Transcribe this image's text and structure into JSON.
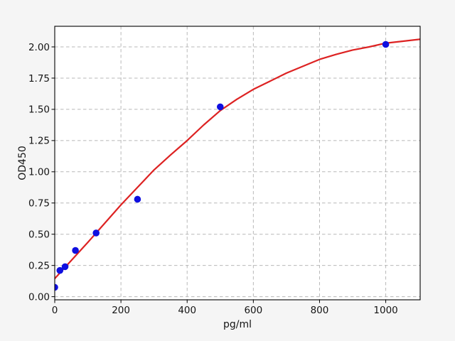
{
  "figure": {
    "background": "#f5f5f5",
    "plot_background": "#ffffff",
    "spine_color": "#000000",
    "grid_color": "#b8b8b8",
    "tick_color": "#000000",
    "text_color": "#151515"
  },
  "chart_data": {
    "type": "scatter",
    "title": "",
    "xlabel": "pg/ml",
    "ylabel": "OD450",
    "xlim": [
      0,
      1104
    ],
    "ylim": [
      -0.025,
      2.165
    ],
    "grid": "dashed",
    "legend_position": "none",
    "xticks": [
      {
        "v": 0,
        "label": "0"
      },
      {
        "v": 200,
        "label": "200"
      },
      {
        "v": 400,
        "label": "400"
      },
      {
        "v": 600,
        "label": "600"
      },
      {
        "v": 800,
        "label": "800"
      },
      {
        "v": 1000,
        "label": "1000"
      }
    ],
    "yticks": [
      {
        "v": 0.0,
        "label": "0.00"
      },
      {
        "v": 0.25,
        "label": "0.25"
      },
      {
        "v": 0.5,
        "label": "0.50"
      },
      {
        "v": 0.75,
        "label": "0.75"
      },
      {
        "v": 1.0,
        "label": "1.00"
      },
      {
        "v": 1.25,
        "label": "1.25"
      },
      {
        "v": 1.5,
        "label": "1.50"
      },
      {
        "v": 1.75,
        "label": "1.75"
      },
      {
        "v": 2.0,
        "label": "2.00"
      }
    ],
    "series": [
      {
        "name": "fit-curve",
        "type": "line",
        "color": "#dd2222",
        "line_width": 2.2,
        "points": [
          [
            0,
            0.145
          ],
          [
            50,
            0.29
          ],
          [
            100,
            0.435
          ],
          [
            150,
            0.585
          ],
          [
            200,
            0.735
          ],
          [
            250,
            0.875
          ],
          [
            300,
            1.015
          ],
          [
            350,
            1.135
          ],
          [
            400,
            1.25
          ],
          [
            450,
            1.375
          ],
          [
            500,
            1.49
          ],
          [
            550,
            1.58
          ],
          [
            600,
            1.66
          ],
          [
            650,
            1.725
          ],
          [
            700,
            1.79
          ],
          [
            750,
            1.845
          ],
          [
            800,
            1.9
          ],
          [
            850,
            1.94
          ],
          [
            900,
            1.975
          ],
          [
            950,
            2.0
          ],
          [
            1000,
            2.03
          ],
          [
            1050,
            2.045
          ],
          [
            1104,
            2.061
          ]
        ]
      },
      {
        "name": "standard-points",
        "type": "scatter",
        "color": "#0f0fe0",
        "marker_radius": 4.8,
        "points": [
          [
            0,
            0.075
          ],
          [
            15.6,
            0.21
          ],
          [
            31.25,
            0.24
          ],
          [
            62.5,
            0.37
          ],
          [
            125,
            0.51
          ],
          [
            250,
            0.78
          ],
          [
            500,
            1.52
          ],
          [
            1000,
            2.02
          ]
        ]
      }
    ]
  }
}
